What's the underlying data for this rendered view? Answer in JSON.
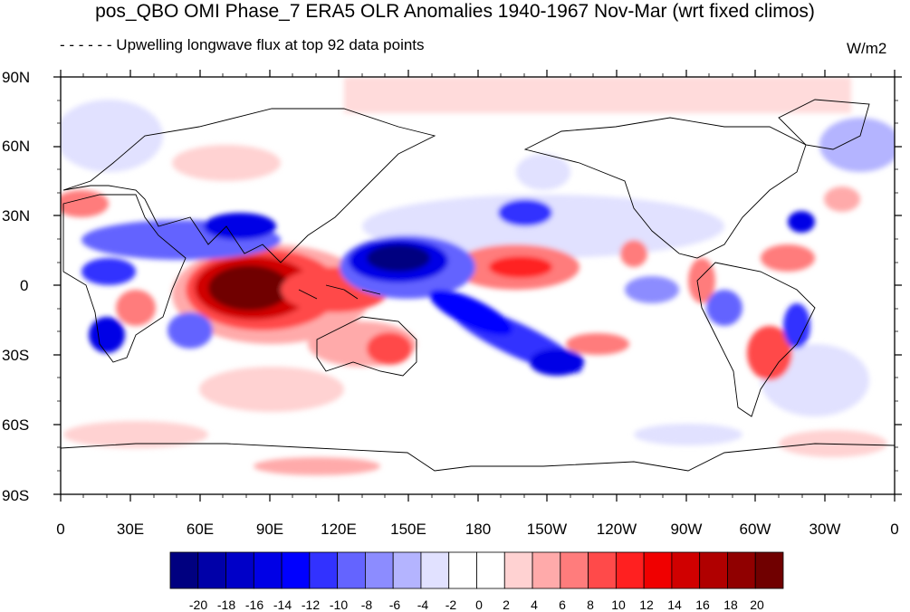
{
  "title": "pos_QBO OMI Phase_7 ERA5 OLR Anomalies 1940-1967 Nov-Mar (wrt fixed climos)",
  "subtitle": "- - - - - - Upwelling longwave flux at top     92 data points",
  "units": "W/m2",
  "lat_labels": [
    "90N",
    "60N",
    "30N",
    "0",
    "30S",
    "60S",
    "90S"
  ],
  "lon_labels": [
    "0",
    "30E",
    "60E",
    "90E",
    "120E",
    "150E",
    "180",
    "150W",
    "120W",
    "90W",
    "60W",
    "30W",
    "0"
  ],
  "colorbar": {
    "labels": [
      "-20",
      "-18",
      "-16",
      "-14",
      "-12",
      "-10",
      "-8",
      "-6",
      "-4",
      "-2",
      "0",
      "2",
      "4",
      "6",
      "8",
      "10",
      "12",
      "14",
      "16",
      "18",
      "20"
    ],
    "colors": [
      "#000080",
      "#0000A8",
      "#0000C8",
      "#0000E6",
      "#0000FF",
      "#3232FF",
      "#6464FF",
      "#8C8CFF",
      "#B4B4FF",
      "#E1E1FF",
      "#FFFFFF",
      "#FFFFFF",
      "#FFD2D2",
      "#FFAAAA",
      "#FF7C7C",
      "#FF4A4A",
      "#FF2020",
      "#F00000",
      "#D00000",
      "#B00000",
      "#900000",
      "#700000"
    ]
  },
  "map_features": [
    {
      "name": "Indian Ocean / Maritime Continent positive OLR anomaly",
      "lon": 85,
      "lat": -10,
      "value": 20
    },
    {
      "name": "central Pacific positive OLR anomaly",
      "lon": 205,
      "lat": 5,
      "value": 12
    },
    {
      "name": "western Pacific negative OLR anomaly",
      "lon": 150,
      "lat": 10,
      "value": -20
    },
    {
      "name": "SPCZ negative OLR anomaly band",
      "lon": 195,
      "lat": -25,
      "value": -14
    },
    {
      "name": "Arabian Sea / India negative OLR anomaly",
      "lon": 90,
      "lat": 25,
      "value": -12
    },
    {
      "name": "southern Africa negative OLR anomaly",
      "lon": 30,
      "lat": -25,
      "value": -14
    },
    {
      "name": "South America positive OLR anomaly",
      "lon": 310,
      "lat": -30,
      "value": 12
    }
  ]
}
